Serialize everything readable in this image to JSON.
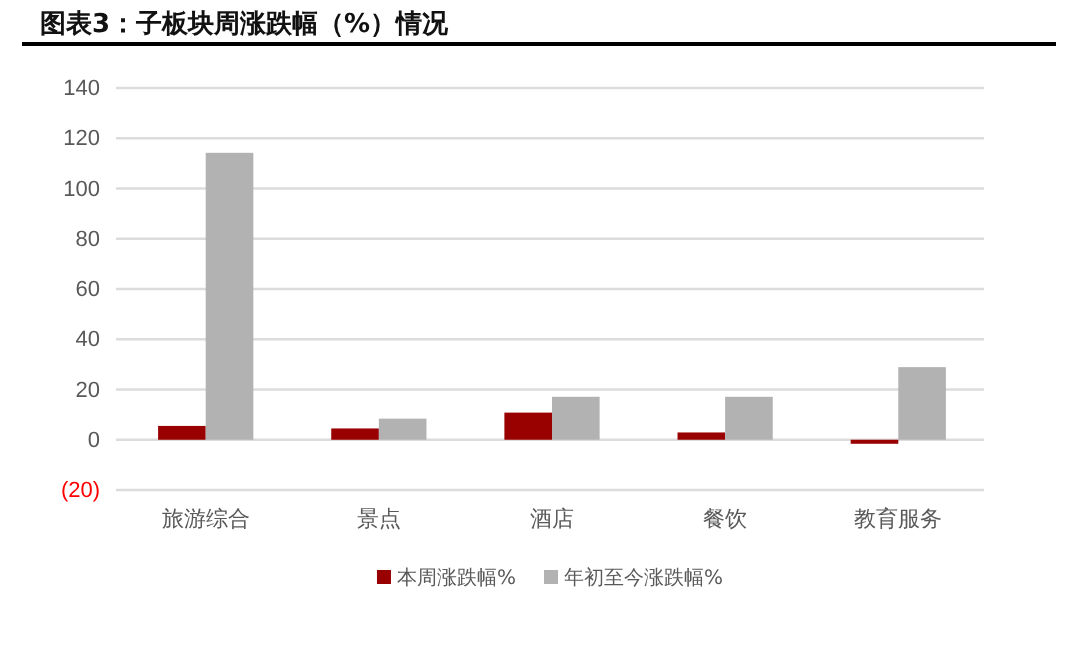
{
  "chart_data": {
    "type": "bar",
    "title": "图表3：子板块周涨跌幅（%）情况",
    "categories": [
      "旅游综合",
      "景点",
      "酒店",
      "餐饮",
      "教育服务"
    ],
    "series": [
      {
        "name": "本周涨跌幅%",
        "color": "#990000",
        "values": [
          5.5,
          4.5,
          10.8,
          2.9,
          -1.6
        ]
      },
      {
        "name": "年初至今涨跌幅%",
        "color": "#b2b2b2",
        "values": [
          114.2,
          8.4,
          17.1,
          17.1,
          28.9
        ]
      }
    ],
    "ylim": [
      -20,
      140
    ],
    "yticks": [
      {
        "value": -20,
        "label": "(20)"
      },
      0,
      20,
      40,
      60,
      80,
      100,
      120,
      140
    ],
    "grid": "y",
    "legend": "bottom"
  }
}
